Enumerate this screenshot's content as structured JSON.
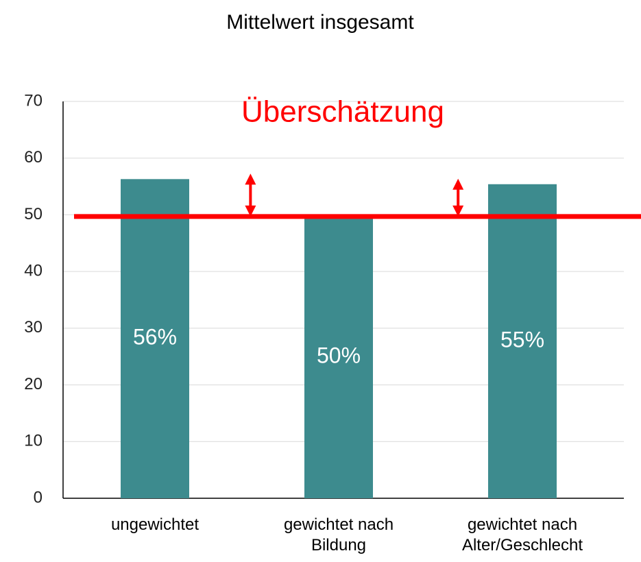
{
  "chart_data": {
    "type": "bar",
    "title": "Mittelwert insgesamt",
    "annotation": "Überschätzung",
    "categories": [
      "ungewichtet",
      "gewichtet nach Bildung",
      "gewichtet nach Alter/Geschlecht"
    ],
    "values": [
      56.3,
      49.8,
      55.4
    ],
    "value_labels": [
      "56%",
      "50%",
      "55%"
    ],
    "color": "#3d8b8e",
    "reference_line": {
      "value": 49.7,
      "color": "#ff0000"
    },
    "ylim": [
      0,
      70
    ],
    "yticks": [
      0,
      10,
      20,
      30,
      40,
      50,
      60,
      70
    ],
    "grid": true
  }
}
